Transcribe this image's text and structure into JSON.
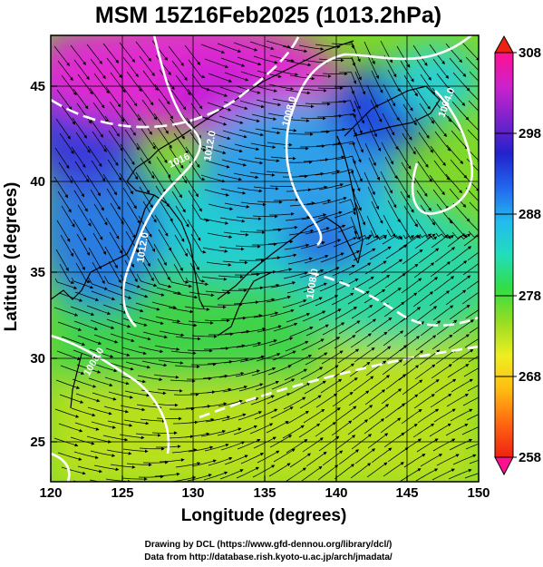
{
  "title": "MSM 15Z16Feb2025 (1013.2hPa)",
  "x_axis": {
    "label": "Longitude (degrees)",
    "range": [
      120,
      150
    ],
    "ticks": [
      "120",
      "125",
      "130",
      "135",
      "140",
      "145",
      "150"
    ]
  },
  "y_axis": {
    "label": "Latitude  (degrees)",
    "range": [
      22.7,
      48
    ],
    "ticks": [
      "25",
      "30",
      "35",
      "40",
      "45"
    ]
  },
  "colorbar": {
    "range": [
      258,
      308
    ],
    "tick_labels": [
      "308",
      "298",
      "288",
      "278",
      "268",
      "258"
    ],
    "colors": [
      "#ff1090",
      "#cc22cc",
      "#7a22cc",
      "#2222cc",
      "#2266ee",
      "#22bbee",
      "#22ddbb",
      "#33dd44",
      "#99dd22",
      "#eeee22",
      "#ffbb11",
      "#ff6611",
      "#ee2211"
    ]
  },
  "isobars": {
    "color": "#ffffff",
    "labels": [
      "1016",
      "1012.0",
      "1008.0",
      "1008.0",
      "1004.0",
      "1012.0",
      "1008.0"
    ]
  },
  "credits": {
    "line1": "Drawing by DCL (https://www.gfd-dennou.org/library/dcl/)",
    "line2": "Data from http://database.rish.kyoto-u.ac.jp/arch/jmadata/"
  }
}
